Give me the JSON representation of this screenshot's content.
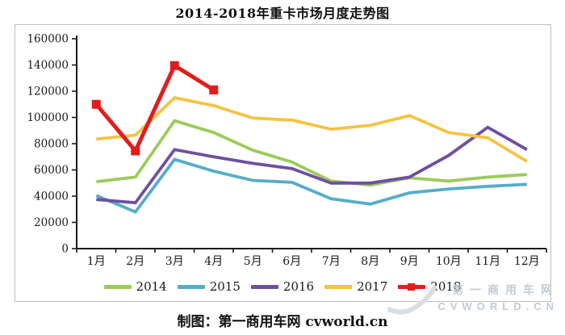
{
  "title": "2014-2018年重卡市场月度走势图",
  "caption": "制图：第一商用车网 cvworld.cn",
  "watermark": {
    "line1": "第一商用车网",
    "line2": "CVWORLD.CN"
  },
  "axis_color": "#1a1a1a",
  "frame_color": "#b9bfc4",
  "chart_data": {
    "type": "line",
    "title": "2014-2018年重卡市场月度走势图",
    "xlabel": "",
    "ylabel": "",
    "categories": [
      "1月",
      "2月",
      "3月",
      "4月",
      "5月",
      "6月",
      "7月",
      "8月",
      "9月",
      "10月",
      "11月",
      "12月"
    ],
    "ylim": [
      0,
      160000
    ],
    "ytick_step": 20000,
    "yticks": [
      0,
      20000,
      40000,
      60000,
      80000,
      100000,
      120000,
      140000,
      160000
    ],
    "grid": false,
    "legend_position": "bottom",
    "series": [
      {
        "name": "2014",
        "color": "#9BCB5A",
        "marker": "none",
        "values": [
          51000,
          54500,
          97500,
          88500,
          75000,
          66000,
          51500,
          48500,
          54000,
          51500,
          54500,
          56500
        ]
      },
      {
        "name": "2015",
        "color": "#55ADC8",
        "marker": "none",
        "values": [
          40500,
          28000,
          68000,
          59000,
          52000,
          50500,
          38000,
          34000,
          42500,
          45500,
          47500,
          49000
        ]
      },
      {
        "name": "2016",
        "color": "#6E4FA0",
        "marker": "none",
        "values": [
          37500,
          35000,
          75500,
          70000,
          65000,
          61000,
          50000,
          50000,
          54500,
          71000,
          92500,
          75500
        ]
      },
      {
        "name": "2017",
        "color": "#F6C242",
        "marker": "none",
        "values": [
          83500,
          86500,
          115000,
          109000,
          99500,
          98000,
          91000,
          94000,
          101500,
          88500,
          84500,
          66500
        ]
      },
      {
        "name": "2018",
        "color": "#E31C1C",
        "marker": "square",
        "values": [
          110000,
          74500,
          139500,
          121000,
          null,
          null,
          null,
          null,
          null,
          null,
          null,
          null
        ]
      }
    ]
  }
}
